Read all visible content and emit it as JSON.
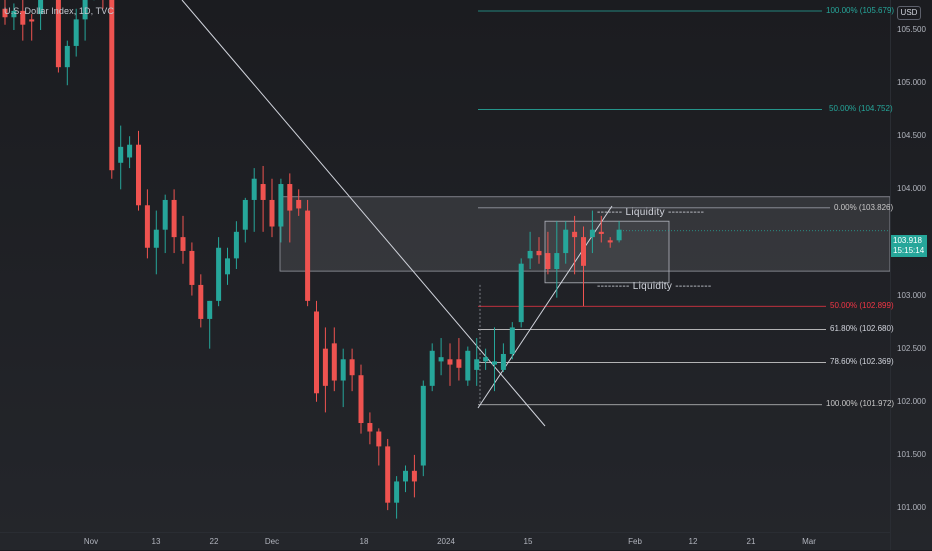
{
  "header": {
    "symbol_title": "U.S. Dollar Index, 1D, TVC",
    "currency": "USD"
  },
  "colors": {
    "up": "#26a69a",
    "down": "#ef5350",
    "fib_teal": "#26a69a",
    "fib_red": "#f23645",
    "fib_white": "#c8c8c8"
  },
  "price_axis": {
    "labels": [
      "105.500",
      "105.000",
      "104.500",
      "104.000",
      "103.000",
      "102.500",
      "102.000",
      "101.500",
      "101.000"
    ],
    "current_price": "103.918",
    "countdown": "15:15:14"
  },
  "time_axis": {
    "labels": [
      "Nov",
      "13",
      "22",
      "Dec",
      "18",
      "2024",
      "15",
      "Feb",
      "12",
      "21",
      "Mar"
    ]
  },
  "fib_upper": [
    {
      "label": "100.00% (105.679)"
    },
    {
      "label": "50.00% (104.752)"
    }
  ],
  "fib_lower": [
    {
      "label": "0.00% (103.826)"
    },
    {
      "label": "50.00% (102.899)"
    },
    {
      "label": "61.80% (102.680)"
    },
    {
      "label": "78.60% (102.369)"
    },
    {
      "label": "100.00% (101.972)"
    }
  ],
  "annotations": {
    "liquidity_top": "------- Liquidity ----------",
    "liquidity_bottom": "--------- Liquidity ----------"
  },
  "chart_data": {
    "type": "candlestick",
    "symbol": "U.S. Dollar Index",
    "interval": "1D",
    "ylim": [
      100.85,
      105.9
    ],
    "candles": [
      {
        "o": 105.7,
        "h": 105.8,
        "l": 105.55,
        "c": 105.62
      },
      {
        "o": 105.62,
        "h": 105.75,
        "l": 105.5,
        "c": 105.68
      },
      {
        "o": 105.68,
        "h": 105.85,
        "l": 105.4,
        "c": 105.55
      },
      {
        "o": 105.6,
        "h": 105.65,
        "l": 105.4,
        "c": 105.58
      },
      {
        "o": 105.65,
        "h": 105.95,
        "l": 105.5,
        "c": 105.9
      },
      {
        "o": 105.92,
        "h": 106.1,
        "l": 105.8,
        "c": 105.85
      },
      {
        "o": 105.85,
        "h": 105.98,
        "l": 105.1,
        "c": 105.15
      },
      {
        "o": 105.15,
        "h": 105.4,
        "l": 104.98,
        "c": 105.35
      },
      {
        "o": 105.35,
        "h": 105.7,
        "l": 105.25,
        "c": 105.6
      },
      {
        "o": 105.6,
        "h": 105.98,
        "l": 105.4,
        "c": 105.9
      },
      {
        "o": 105.9,
        "h": 106.05,
        "l": 105.78,
        "c": 105.95
      },
      {
        "o": 105.98,
        "h": 106.0,
        "l": 105.7,
        "c": 105.84
      },
      {
        "o": 105.82,
        "h": 105.92,
        "l": 104.1,
        "c": 104.18
      },
      {
        "o": 104.25,
        "h": 104.6,
        "l": 104.0,
        "c": 104.4
      },
      {
        "o": 104.3,
        "h": 104.5,
        "l": 104.2,
        "c": 104.42
      },
      {
        "o": 104.42,
        "h": 104.55,
        "l": 103.8,
        "c": 103.85
      },
      {
        "o": 103.85,
        "h": 104.0,
        "l": 103.35,
        "c": 103.45
      },
      {
        "o": 103.45,
        "h": 103.8,
        "l": 103.2,
        "c": 103.62
      },
      {
        "o": 103.62,
        "h": 103.95,
        "l": 103.4,
        "c": 103.9
      },
      {
        "o": 103.9,
        "h": 104.0,
        "l": 103.4,
        "c": 103.55
      },
      {
        "o": 103.55,
        "h": 103.75,
        "l": 103.3,
        "c": 103.42
      },
      {
        "o": 103.42,
        "h": 103.5,
        "l": 103.0,
        "c": 103.1
      },
      {
        "o": 103.1,
        "h": 103.2,
        "l": 102.7,
        "c": 102.78
      },
      {
        "o": 102.78,
        "h": 102.95,
        "l": 102.5,
        "c": 102.95
      },
      {
        "o": 102.95,
        "h": 103.55,
        "l": 102.9,
        "c": 103.45
      },
      {
        "o": 103.2,
        "h": 103.45,
        "l": 103.1,
        "c": 103.35
      },
      {
        "o": 103.35,
        "h": 103.7,
        "l": 103.25,
        "c": 103.6
      },
      {
        "o": 103.62,
        "h": 103.92,
        "l": 103.5,
        "c": 103.9
      },
      {
        "o": 103.9,
        "h": 104.2,
        "l": 103.6,
        "c": 104.1
      },
      {
        "o": 104.05,
        "h": 104.22,
        "l": 103.6,
        "c": 103.9
      },
      {
        "o": 103.9,
        "h": 104.1,
        "l": 103.55,
        "c": 103.65
      },
      {
        "o": 103.65,
        "h": 104.1,
        "l": 103.5,
        "c": 104.05
      },
      {
        "o": 104.05,
        "h": 104.15,
        "l": 103.5,
        "c": 103.8
      },
      {
        "o": 103.9,
        "h": 104.0,
        "l": 103.75,
        "c": 103.82
      },
      {
        "o": 103.8,
        "h": 103.9,
        "l": 102.9,
        "c": 102.95
      },
      {
        "o": 102.85,
        "h": 102.95,
        "l": 102.0,
        "c": 102.08
      },
      {
        "o": 102.5,
        "h": 102.7,
        "l": 101.9,
        "c": 102.15
      },
      {
        "o": 102.55,
        "h": 102.7,
        "l": 102.1,
        "c": 102.2
      },
      {
        "o": 102.2,
        "h": 102.5,
        "l": 101.95,
        "c": 102.4
      },
      {
        "o": 102.4,
        "h": 102.5,
        "l": 102.1,
        "c": 102.25
      },
      {
        "o": 102.25,
        "h": 102.35,
        "l": 101.7,
        "c": 101.8
      },
      {
        "o": 101.8,
        "h": 101.9,
        "l": 101.6,
        "c": 101.72
      },
      {
        "o": 101.72,
        "h": 101.75,
        "l": 101.4,
        "c": 101.58
      },
      {
        "o": 101.58,
        "h": 101.65,
        "l": 100.98,
        "c": 101.05
      },
      {
        "o": 101.05,
        "h": 101.3,
        "l": 100.9,
        "c": 101.25
      },
      {
        "o": 101.25,
        "h": 101.4,
        "l": 101.15,
        "c": 101.35
      },
      {
        "o": 101.35,
        "h": 101.5,
        "l": 101.1,
        "c": 101.25
      },
      {
        "o": 101.4,
        "h": 102.2,
        "l": 101.3,
        "c": 102.15
      },
      {
        "o": 102.15,
        "h": 102.55,
        "l": 102.1,
        "c": 102.48
      },
      {
        "o": 102.38,
        "h": 102.6,
        "l": 102.25,
        "c": 102.42
      },
      {
        "o": 102.4,
        "h": 102.55,
        "l": 102.15,
        "c": 102.35
      },
      {
        "o": 102.4,
        "h": 102.6,
        "l": 102.2,
        "c": 102.32
      },
      {
        "o": 102.2,
        "h": 102.52,
        "l": 102.15,
        "c": 102.48
      },
      {
        "o": 102.3,
        "h": 102.6,
        "l": 102.15,
        "c": 102.4
      },
      {
        "o": 102.38,
        "h": 102.5,
        "l": 102.3,
        "c": 102.42
      },
      {
        "o": 102.35,
        "h": 102.7,
        "l": 102.1,
        "c": 102.38
      },
      {
        "o": 102.3,
        "h": 102.55,
        "l": 102.28,
        "c": 102.45
      },
      {
        "o": 102.45,
        "h": 102.75,
        "l": 102.4,
        "c": 102.7
      },
      {
        "o": 102.75,
        "h": 103.35,
        "l": 102.7,
        "c": 103.3
      },
      {
        "o": 103.35,
        "h": 103.6,
        "l": 103.25,
        "c": 103.42
      },
      {
        "o": 103.42,
        "h": 103.55,
        "l": 103.3,
        "c": 103.38
      },
      {
        "o": 103.4,
        "h": 103.6,
        "l": 103.2,
        "c": 103.25
      },
      {
        "o": 103.25,
        "h": 103.7,
        "l": 102.98,
        "c": 103.4
      },
      {
        "o": 103.4,
        "h": 103.7,
        "l": 103.3,
        "c": 103.62
      },
      {
        "o": 103.6,
        "h": 103.75,
        "l": 103.2,
        "c": 103.55
      },
      {
        "o": 103.55,
        "h": 103.65,
        "l": 102.9,
        "c": 103.28
      },
      {
        "o": 103.55,
        "h": 103.8,
        "l": 103.4,
        "c": 103.62
      },
      {
        "o": 103.6,
        "h": 103.75,
        "l": 103.5,
        "c": 103.58
      },
      {
        "o": 103.52,
        "h": 103.55,
        "l": 103.45,
        "c": 103.5
      },
      {
        "o": 103.52,
        "h": 103.7,
        "l": 103.5,
        "c": 103.62
      }
    ]
  }
}
